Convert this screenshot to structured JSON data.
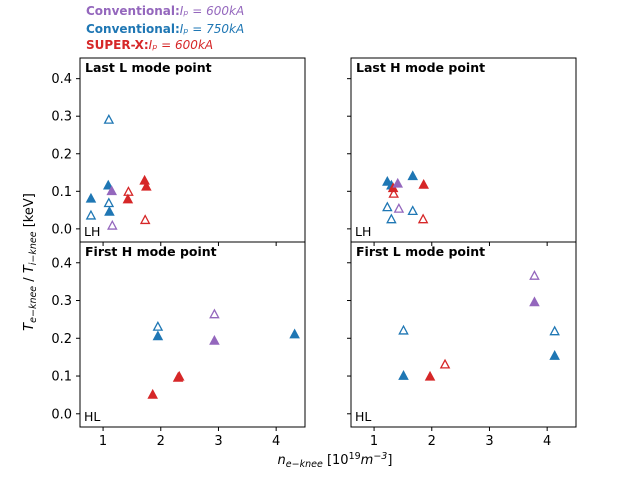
{
  "legend": [
    {
      "label": "Conventional:",
      "ip": "I_p = 600kA",
      "color": "#9467bd"
    },
    {
      "label": "Conventional:",
      "ip": "I_p = 750kA",
      "color": "#1f77b4"
    },
    {
      "label": "SUPER-X:",
      "ip": "I_p = 600kA",
      "color": "#d62728"
    }
  ],
  "ylabel": "T_e-knee / T_i-knee [keV]",
  "xlabel": "n_e-knee [10^19 m^-3]",
  "chart_data": [
    {
      "type": "scatter",
      "title": "Last L mode point",
      "corner_label": "LH",
      "xlim": [
        0.6,
        4.5
      ],
      "ylim": [
        -0.035,
        0.455
      ],
      "xticks": [
        "1",
        "2",
        "3",
        "4"
      ],
      "yticks": [
        "0.0",
        "0.1",
        "0.2",
        "0.3",
        "0.4"
      ],
      "points": [
        {
          "x": 0.79,
          "y": 0.08,
          "c": "#1f77b4",
          "f": true
        },
        {
          "x": 0.79,
          "y": 0.035,
          "c": "#1f77b4",
          "f": false
        },
        {
          "x": 1.09,
          "y": 0.115,
          "c": "#1f77b4",
          "f": true
        },
        {
          "x": 1.1,
          "y": 0.29,
          "c": "#1f77b4",
          "f": false
        },
        {
          "x": 1.1,
          "y": 0.068,
          "c": "#1f77b4",
          "f": false
        },
        {
          "x": 1.11,
          "y": 0.045,
          "c": "#1f77b4",
          "f": true
        },
        {
          "x": 1.15,
          "y": 0.1,
          "c": "#9467bd",
          "f": true
        },
        {
          "x": 1.16,
          "y": 0.008,
          "c": "#9467bd",
          "f": false
        },
        {
          "x": 1.43,
          "y": 0.078,
          "c": "#d62728",
          "f": true
        },
        {
          "x": 1.44,
          "y": 0.098,
          "c": "#d62728",
          "f": false
        },
        {
          "x": 1.72,
          "y": 0.128,
          "c": "#d62728",
          "f": true
        },
        {
          "x": 1.75,
          "y": 0.112,
          "c": "#d62728",
          "f": true
        },
        {
          "x": 1.73,
          "y": 0.023,
          "c": "#d62728",
          "f": false
        }
      ]
    },
    {
      "type": "scatter",
      "title": "Last H mode point",
      "corner_label": "LH",
      "xlim": [
        0.6,
        4.5
      ],
      "ylim": [
        -0.035,
        0.455
      ],
      "xticks": [
        "1",
        "2",
        "3",
        "4"
      ],
      "yticks": [],
      "points": [
        {
          "x": 1.23,
          "y": 0.125,
          "c": "#1f77b4",
          "f": true
        },
        {
          "x": 1.23,
          "y": 0.057,
          "c": "#1f77b4",
          "f": false
        },
        {
          "x": 1.3,
          "y": 0.115,
          "c": "#1f77b4",
          "f": true
        },
        {
          "x": 1.3,
          "y": 0.025,
          "c": "#1f77b4",
          "f": false
        },
        {
          "x": 1.33,
          "y": 0.108,
          "c": "#d62728",
          "f": true
        },
        {
          "x": 1.34,
          "y": 0.093,
          "c": "#d62728",
          "f": false
        },
        {
          "x": 1.41,
          "y": 0.12,
          "c": "#9467bd",
          "f": true
        },
        {
          "x": 1.43,
          "y": 0.053,
          "c": "#9467bd",
          "f": false
        },
        {
          "x": 1.67,
          "y": 0.14,
          "c": "#1f77b4",
          "f": true
        },
        {
          "x": 1.67,
          "y": 0.047,
          "c": "#1f77b4",
          "f": false
        },
        {
          "x": 1.86,
          "y": 0.117,
          "c": "#d62728",
          "f": true
        },
        {
          "x": 1.85,
          "y": 0.025,
          "c": "#d62728",
          "f": false
        }
      ]
    },
    {
      "type": "scatter",
      "title": "First H mode point",
      "corner_label": "HL",
      "xlim": [
        0.6,
        4.5
      ],
      "ylim": [
        -0.035,
        0.455
      ],
      "xticks": [
        "1",
        "2",
        "3",
        "4"
      ],
      "yticks": [
        "0.0",
        "0.1",
        "0.2",
        "0.3",
        "0.4"
      ],
      "points": [
        {
          "x": 1.86,
          "y": 0.05,
          "c": "#d62728",
          "f": true
        },
        {
          "x": 1.95,
          "y": 0.23,
          "c": "#1f77b4",
          "f": false
        },
        {
          "x": 1.95,
          "y": 0.205,
          "c": "#1f77b4",
          "f": true
        },
        {
          "x": 2.32,
          "y": 0.098,
          "c": "#d62728",
          "f": true
        },
        {
          "x": 2.3,
          "y": 0.095,
          "c": "#d62728",
          "f": false
        },
        {
          "x": 2.93,
          "y": 0.263,
          "c": "#9467bd",
          "f": false
        },
        {
          "x": 2.93,
          "y": 0.193,
          "c": "#9467bd",
          "f": true
        },
        {
          "x": 4.32,
          "y": 0.21,
          "c": "#1f77b4",
          "f": true
        }
      ]
    },
    {
      "type": "scatter",
      "title": "First L mode point",
      "corner_label": "HL",
      "xlim": [
        0.6,
        4.5
      ],
      "ylim": [
        -0.035,
        0.455
      ],
      "xticks": [
        "1",
        "2",
        "3",
        "4"
      ],
      "yticks": [],
      "points": [
        {
          "x": 1.51,
          "y": 0.22,
          "c": "#1f77b4",
          "f": false
        },
        {
          "x": 1.51,
          "y": 0.1,
          "c": "#1f77b4",
          "f": true
        },
        {
          "x": 1.97,
          "y": 0.098,
          "c": "#d62728",
          "f": true
        },
        {
          "x": 2.23,
          "y": 0.13,
          "c": "#d62728",
          "f": false
        },
        {
          "x": 3.78,
          "y": 0.365,
          "c": "#9467bd",
          "f": false
        },
        {
          "x": 3.78,
          "y": 0.295,
          "c": "#9467bd",
          "f": true
        },
        {
          "x": 4.13,
          "y": 0.218,
          "c": "#1f77b4",
          "f": false
        },
        {
          "x": 4.13,
          "y": 0.153,
          "c": "#1f77b4",
          "f": true
        }
      ]
    }
  ]
}
